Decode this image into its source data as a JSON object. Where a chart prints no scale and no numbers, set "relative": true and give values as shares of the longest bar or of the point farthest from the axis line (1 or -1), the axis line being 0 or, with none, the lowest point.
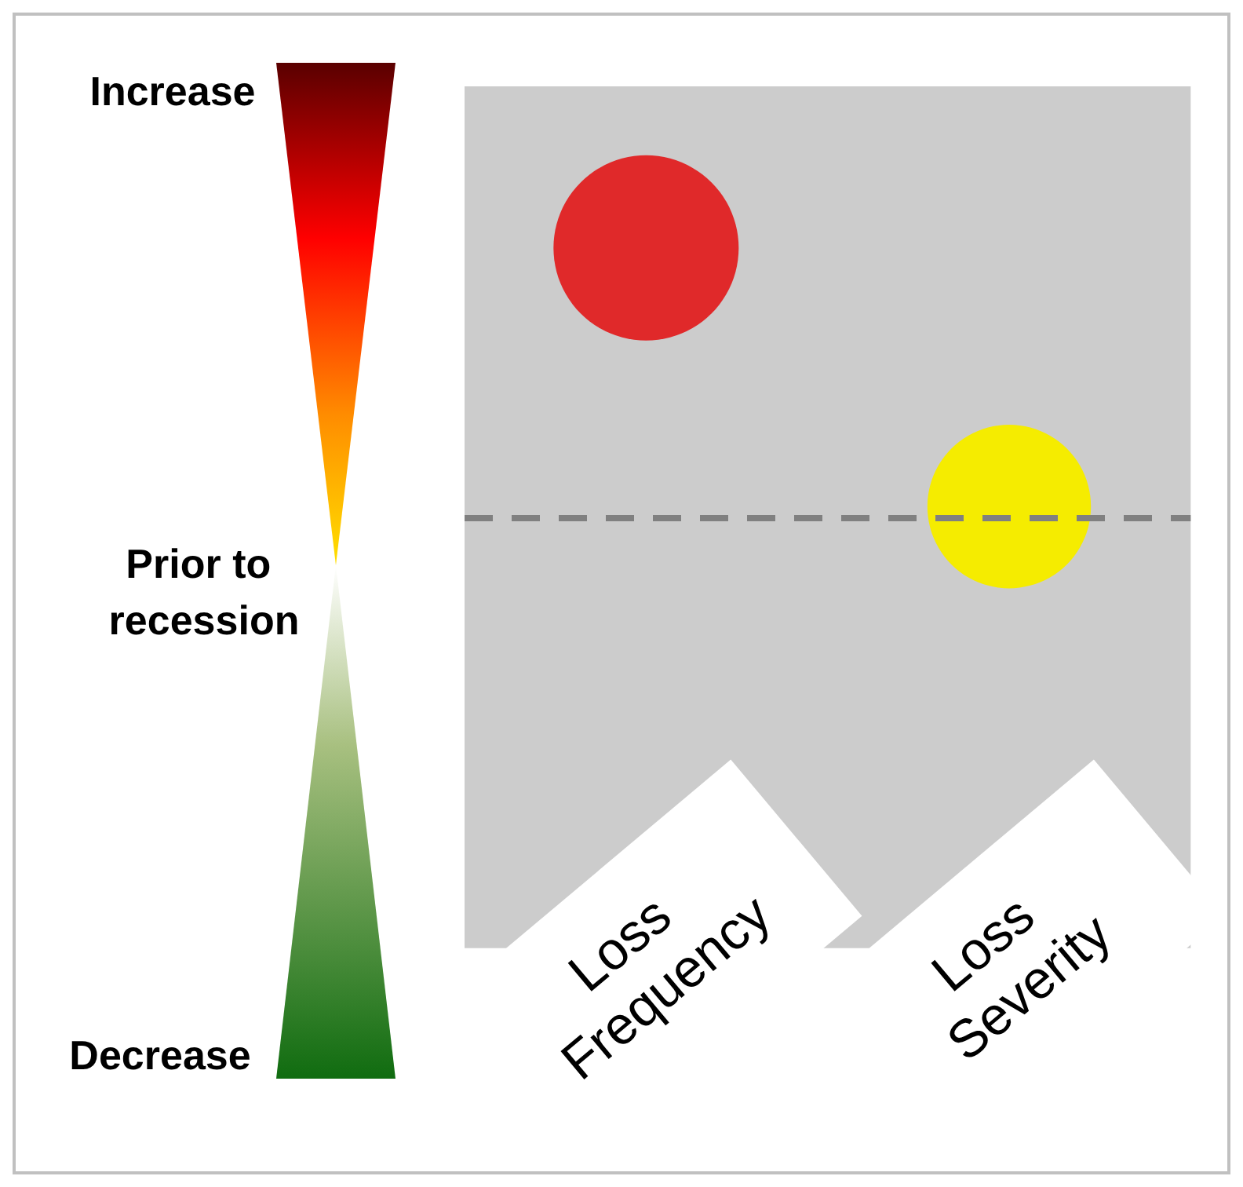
{
  "chart_data": {
    "type": "bubble",
    "relative": true,
    "categories": [
      "Loss Frequency",
      "Loss Severity"
    ],
    "values": [
      1,
      0.04
    ],
    "sizes": [
      1,
      0.78
    ],
    "colors": [
      "#e0292a",
      "#f5ec00"
    ],
    "ref_lines": [
      {
        "axis": "y",
        "value": 0,
        "color": "#808080",
        "line_style": "dashed"
      }
    ],
    "annotations": [
      "Increase",
      "Prior to recession",
      "Decrease"
    ],
    "grid": false
  }
}
